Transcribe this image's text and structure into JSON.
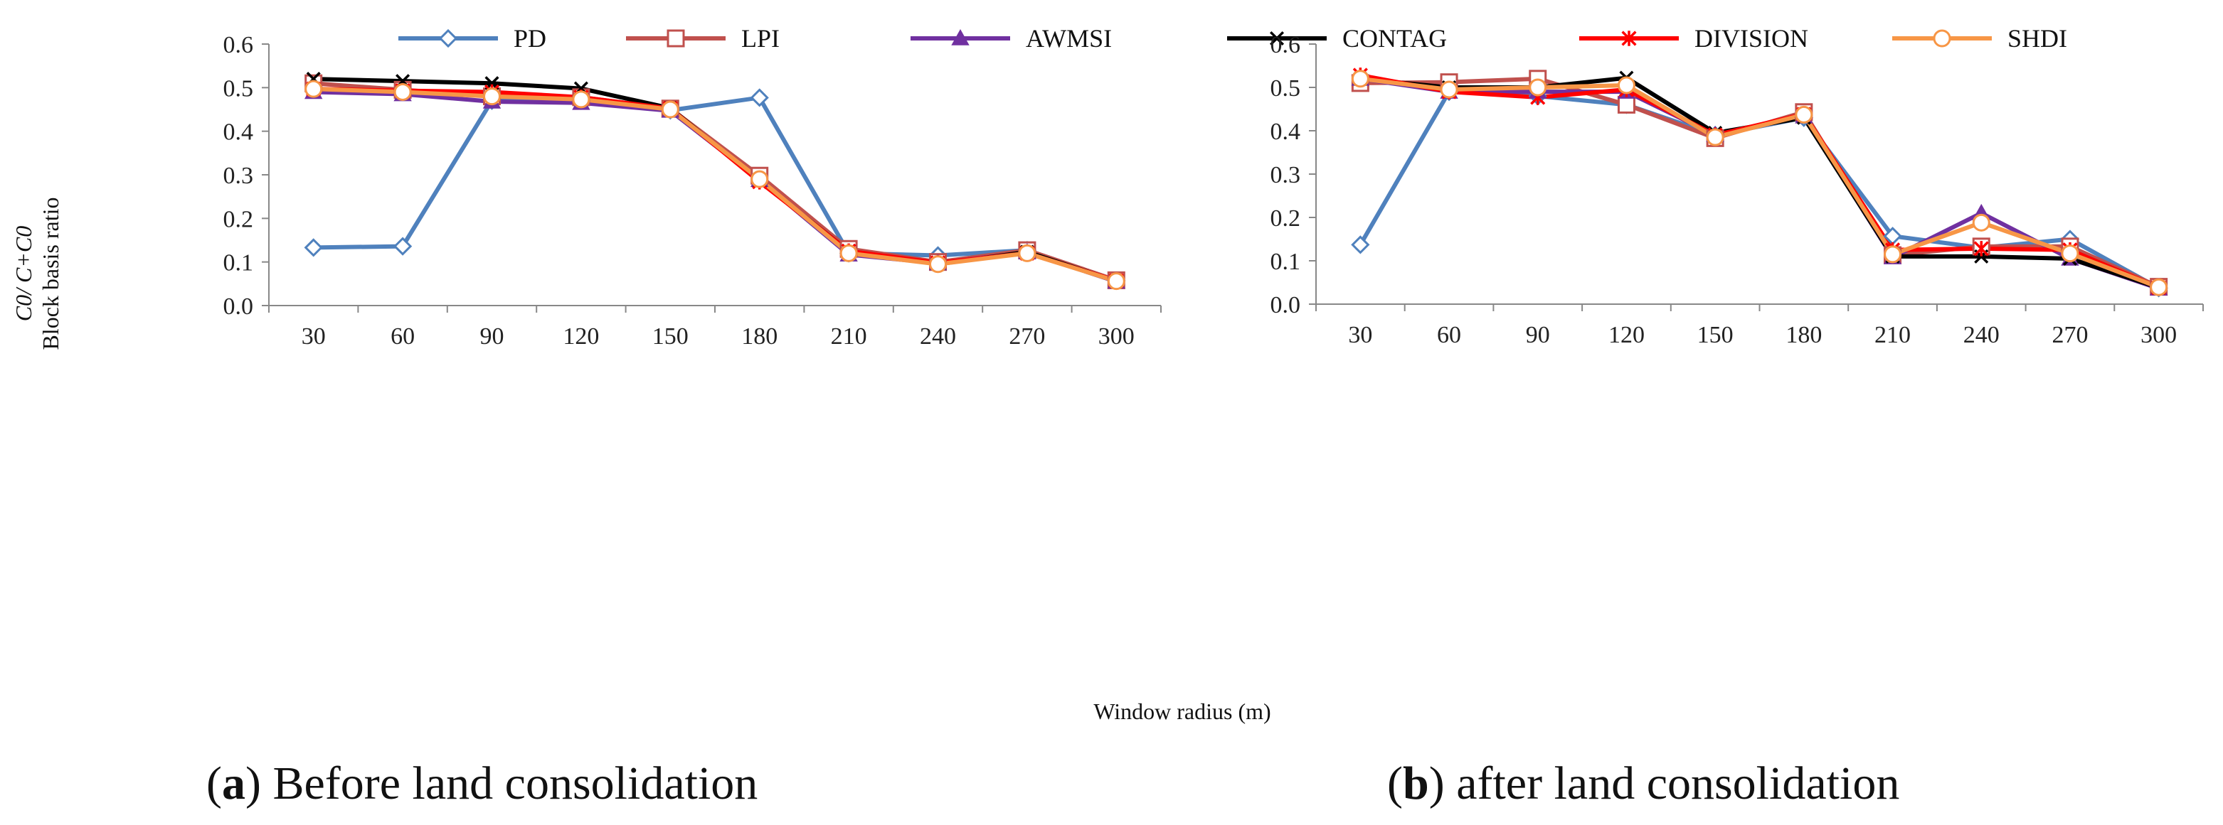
{
  "figure": {
    "ylabel_line1": "C0/ C+C0",
    "ylabel_line2": "Block basis ratio",
    "xlabel": "Window radius (m)",
    "caption_a_letter": "a",
    "caption_a_text": "Before land consolidation",
    "caption_b_letter": "b",
    "caption_b_text": "after land consolidation"
  },
  "legend": [
    {
      "name": "PD",
      "color": "#4F81BD",
      "marker": "diamond"
    },
    {
      "name": "LPI",
      "color": "#C0504D",
      "marker": "square"
    },
    {
      "name": "AWMSI",
      "color": "#7030A0",
      "marker": "triangle"
    },
    {
      "name": "CONTAG",
      "color": "#000000",
      "marker": "x"
    },
    {
      "name": "DIVISION",
      "color": "#FF0000",
      "marker": "star"
    },
    {
      "name": "SHDI",
      "color": "#F79646",
      "marker": "circle"
    }
  ],
  "chart_data": [
    {
      "type": "line",
      "title": "Before land consolidation",
      "xlabel": "Window radius (m)",
      "ylabel": "C0/ C+C0 Block basis ratio",
      "categories": [
        "30",
        "60",
        "90",
        "120",
        "150",
        "180",
        "210",
        "240",
        "270",
        "300"
      ],
      "ylim": [
        0,
        0.6
      ],
      "yticks": [
        "0.0",
        "0.1",
        "0.2",
        "0.3",
        "0.4",
        "0.5",
        "0.6"
      ],
      "series": [
        {
          "name": "PD",
          "values": [
            0.133,
            0.136,
            0.47,
            0.47,
            0.448,
            0.477,
            0.12,
            0.115,
            0.127,
            0.057
          ]
        },
        {
          "name": "LPI",
          "values": [
            0.51,
            0.495,
            0.48,
            0.478,
            0.452,
            0.298,
            0.13,
            0.1,
            0.127,
            0.058
          ]
        },
        {
          "name": "AWMSI",
          "values": [
            0.49,
            0.485,
            0.468,
            0.465,
            0.447,
            0.288,
            0.117,
            0.097,
            0.122,
            0.055
          ]
        },
        {
          "name": "CONTAG",
          "values": [
            0.52,
            0.515,
            0.51,
            0.498,
            0.453,
            0.285,
            0.125,
            0.095,
            0.123,
            0.056
          ]
        },
        {
          "name": "DIVISION",
          "values": [
            0.497,
            0.493,
            0.49,
            0.478,
            0.452,
            0.284,
            0.125,
            0.098,
            0.12,
            0.057
          ]
        },
        {
          "name": "SHDI",
          "values": [
            0.497,
            0.49,
            0.48,
            0.473,
            0.45,
            0.29,
            0.12,
            0.095,
            0.12,
            0.056
          ]
        }
      ]
    },
    {
      "type": "line",
      "title": "after land consolidation",
      "xlabel": "Window radius (m)",
      "ylabel": "",
      "categories": [
        "30",
        "60",
        "90",
        "120",
        "150",
        "180",
        "210",
        "240",
        "270",
        "300"
      ],
      "ylim": [
        0,
        0.6
      ],
      "yticks": [
        "0.0",
        "0.1",
        "0.2",
        "0.3",
        "0.4",
        "0.5",
        "0.6"
      ],
      "series": [
        {
          "name": "PD",
          "values": [
            0.137,
            0.49,
            0.48,
            0.46,
            0.39,
            0.43,
            0.157,
            0.13,
            0.15,
            0.037
          ]
        },
        {
          "name": "LPI",
          "values": [
            0.51,
            0.512,
            0.52,
            0.46,
            0.383,
            0.443,
            0.113,
            0.133,
            0.133,
            0.04
          ]
        },
        {
          "name": "AWMSI",
          "values": [
            0.52,
            0.49,
            0.49,
            0.49,
            0.39,
            0.433,
            0.108,
            0.21,
            0.105,
            0.036
          ]
        },
        {
          "name": "CONTAG",
          "values": [
            0.52,
            0.5,
            0.5,
            0.522,
            0.395,
            0.43,
            0.11,
            0.11,
            0.105,
            0.038
          ]
        },
        {
          "name": "DIVISION",
          "values": [
            0.528,
            0.49,
            0.477,
            0.495,
            0.39,
            0.438,
            0.125,
            0.128,
            0.125,
            0.038
          ]
        },
        {
          "name": "SHDI",
          "values": [
            0.52,
            0.495,
            0.5,
            0.505,
            0.385,
            0.437,
            0.115,
            0.188,
            0.117,
            0.039
          ]
        }
      ]
    }
  ]
}
